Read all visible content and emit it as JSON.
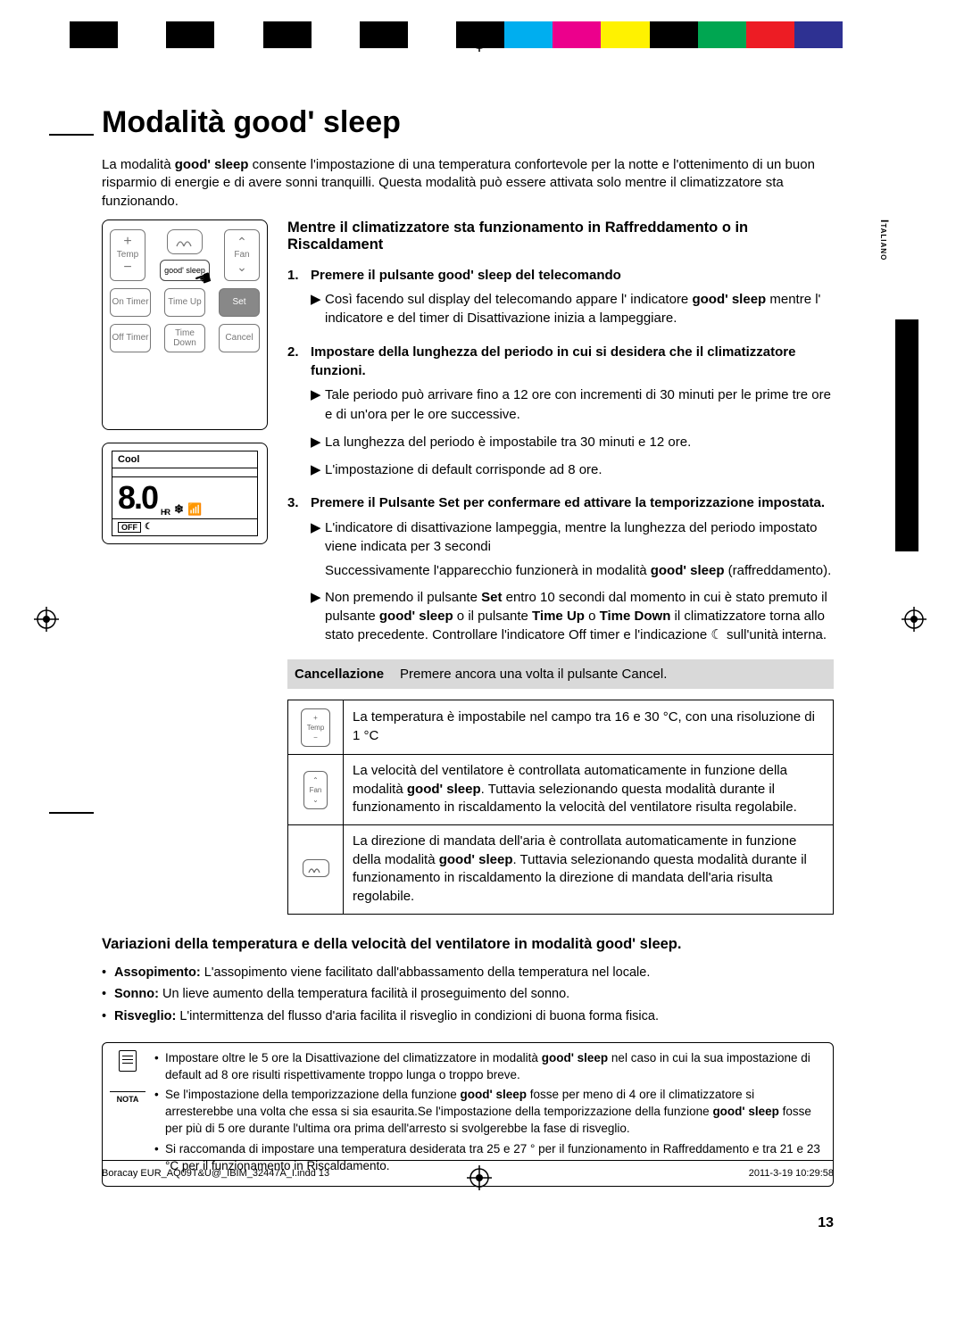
{
  "colorbar": [
    "#000000",
    "#ffffff",
    "#000000",
    "#ffffff",
    "#000000",
    "#ffffff",
    "#000000",
    "#ffffff",
    "#000000",
    "#00aeef",
    "#ec008c",
    "#fff200",
    "#000000",
    "#00a651",
    "#ed1c24",
    "#2e3192",
    "#ffffff"
  ],
  "title_plain": "Modalità ",
  "title_brand": "good' sleep",
  "intro": {
    "t1": "La modalità ",
    "t2": " consente l'impostazione di una temperatura confortevole per la notte e l'ottenimento di un buon risparmio di energie e di avere sonni tranquilli. Questa modalità può essere attivata solo mentre il climatizzatore sta funzionando."
  },
  "remote": {
    "temp": "Temp",
    "fan": "Fan",
    "goodsleep": "good' sleep",
    "on_timer": "On Timer",
    "time_up": "Time Up",
    "set": "Set",
    "off_timer": "Off Timer",
    "time_down": "Time Down",
    "cancel": "Cancel"
  },
  "display": {
    "cool": "Cool",
    "digits": "8.0",
    "hr": "HR",
    "off": "OFF"
  },
  "subheading": "Mentre il climatizzatore sta funzionamento in Raffreddamento o in Riscaldament",
  "steps": [
    {
      "n": "1.",
      "head_a": "Premere il pulsante ",
      "head_b": " del telecomando",
      "bullets": [
        {
          "a": "Così facendo sul display del telecomando appare l' indicatore ",
          "b": " mentre l' indicatore e del timer di Disattivazione inizia a lampeggiare."
        }
      ]
    },
    {
      "n": "2.",
      "head_a": "Impostare della lunghezza del periodo in cui si desidera che il climatizzatore funzioni.",
      "bullets": [
        {
          "t": "Tale periodo può arrivare fino a 12 ore con incrementi di 30 minuti per le prime tre ore e di un'ora per le ore successive."
        },
        {
          "t": "La lunghezza del periodo è impostabile tra 30 minuti e 12 ore."
        },
        {
          "t": "L'impostazione di default corrisponde ad 8 ore."
        }
      ]
    },
    {
      "n": "3.",
      "head_a": "Premere il Pulsante Set per confermare ed attivare  la temporizzazione impostata.",
      "bullets": [
        {
          "t": "L'indicatore di disattivazione lampeggia, mentre la lunghezza del periodo impostato viene indicata per 3 secondi"
        }
      ],
      "extra_a": "Successivamente l'apparecchio funzionerà in modalità ",
      "extra_b": " (raffreddamento).",
      "bullets2": [
        {
          "a": "Non premendo il pulsante ",
          "set": "Set",
          "b": " entro 10 secondi dal momento in cui è stato premuto il pulsante ",
          "c": " o il pulsante ",
          "tu": "Time Up",
          "d": " o ",
          "td": "Time Down",
          "e": " il climatizzatore torna allo stato precedente.  Controllare l'indicatore Off timer e l'indicazione ",
          "f": " sull'unità interna."
        }
      ]
    }
  ],
  "cancel": {
    "label": "Cancellazione",
    "text": "Premere ancora una volta il pulsante Cancel."
  },
  "table": {
    "r1": "La temperatura è impostabile nel campo tra 16 e 30 °C, con una risoluzione di 1 °C",
    "r2a": "La velocità del ventilatore è controllata automaticamente in funzione della modalità ",
    "r2b": ". Tuttavia selezionando questa modalità durante il funzionamento in riscaldamento la velocità del ventilatore risulta regolabile.",
    "r3a": "La direzione di mandata dell'aria è controllata automaticamente in funzione della modalità ",
    "r3b": ". Tuttavia selezionando questa modalità durante il funzionamento in riscaldamento la direzione di mandata dell'aria risulta regolabile.",
    "i1": "Temp",
    "i2": "Fan"
  },
  "variations": {
    "head_a": "Variazioni della temperatura e della velocità del ventilatore in modalità ",
    "items": [
      {
        "k": "Assopimento:",
        "v": " L'assopimento viene facilitato dall'abbassamento della temperatura nel locale."
      },
      {
        "k": "Sonno:",
        "v": " Un lieve aumento della temperatura facilità il proseguimento del sonno."
      },
      {
        "k": "Risveglio:",
        "v": " L'intermittenza del flusso d'aria facilita il risveglio in condizioni di buona forma fisica."
      }
    ]
  },
  "nota": {
    "label": "NOTA",
    "items": [
      {
        "a": "Impostare oltre le 5 ore la Disattivazione del climatizzatore in modalità ",
        "b": " nel caso in cui la sua impostazione di default ad 8 ore risulti rispettivamente troppo lunga o troppo breve."
      },
      {
        "a": "Se l'impostazione della temporizzazione della funzione ",
        "b": " fosse per meno di 4 ore il climatizzatore si arresterebbe una volta che essa si sia esaurita.Se l'impostazione della temporizzazione della funzione ",
        "c": " fosse per più di 5 ore durante l'ultima ora prima dell'arresto si svolgerebbe la fase di risveglio."
      },
      {
        "t": "Si raccomanda di impostare una temperatura desiderata tra 25 e 27 ° per il funzionamento in Raffreddamento e tra 21 e 23 °C per il funzionamento in Riscaldamento."
      }
    ]
  },
  "brand": "good' sleep",
  "sidetab": "Italiano",
  "pagenum": "13",
  "footer_left": "Boracay EUR_AQ09T&U@_IBIM_32447A_I.indd   13",
  "footer_right": "2011-3-19   10:29:58"
}
